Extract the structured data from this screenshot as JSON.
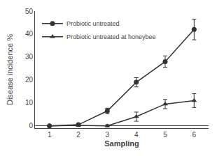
{
  "chart_data": {
    "type": "line",
    "x": [
      1,
      2,
      3,
      4,
      5,
      6
    ],
    "xlabel": "Sampling",
    "ylabel": "Disease incidence %",
    "xlim": [
      0.5,
      6.5
    ],
    "xticks": [
      1,
      2,
      3,
      4,
      5,
      6
    ],
    "ylim": [
      -1,
      50
    ],
    "yticks": [
      0,
      10,
      20,
      30,
      40,
      50
    ],
    "grid": false,
    "legend": "upper left",
    "series": [
      {
        "name": "Probiotic untreated",
        "color": "#333333",
        "marker": "circle",
        "line_style": "solid",
        "values": [
          0.0,
          0.5,
          6.5,
          19.0,
          28.0,
          42.0
        ],
        "errors": [
          0.3,
          0.5,
          1.2,
          2.0,
          2.5,
          4.5
        ]
      },
      {
        "name": "Probiotic untreated at honeybee",
        "color": "#333333",
        "marker": "triangle",
        "line_style": "solid",
        "values": [
          0.0,
          0.2,
          0.0,
          4.0,
          9.5,
          11.0
        ],
        "errors": [
          0.3,
          0.4,
          0.5,
          2.0,
          2.0,
          3.0
        ]
      }
    ]
  }
}
